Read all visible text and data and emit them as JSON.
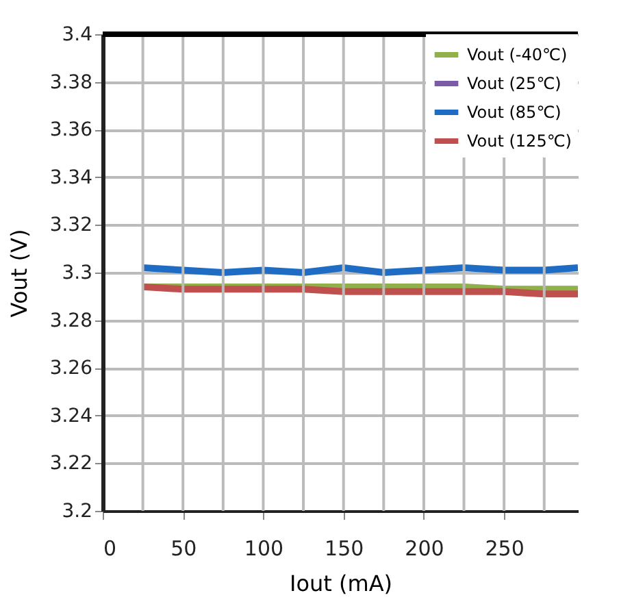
{
  "chart_data": {
    "type": "line",
    "xlabel": "Iout (mA)",
    "ylabel": "Vout (V)",
    "x": [
      25,
      50,
      75,
      100,
      125,
      150,
      175,
      200,
      225,
      250,
      275,
      296
    ],
    "series": [
      {
        "name": "Vout (-40℃)",
        "color": "#8fb04a",
        "values": [
          3.294,
          3.294,
          3.294,
          3.294,
          3.294,
          3.294,
          3.294,
          3.294,
          3.294,
          3.293,
          3.293,
          3.293
        ]
      },
      {
        "name": "Vout (25℃)",
        "color": "#7a5ba6",
        "values": [
          null,
          null,
          null,
          null,
          null,
          null,
          null,
          null,
          null,
          null,
          null,
          null
        ]
      },
      {
        "name": "Vout (85℃)",
        "color": "#1f6cc4",
        "values": [
          3.302,
          3.301,
          3.3,
          3.301,
          3.3,
          3.302,
          3.3,
          3.301,
          3.302,
          3.301,
          3.301,
          3.302
        ]
      },
      {
        "name": "Vout (125℃)",
        "color": "#c0504d",
        "values": [
          3.294,
          3.293,
          3.293,
          3.293,
          3.293,
          3.292,
          3.292,
          3.292,
          3.292,
          3.292,
          3.291,
          3.291
        ]
      }
    ],
    "xlim": [
      0,
      296
    ],
    "xticks": [
      0,
      50,
      100,
      150,
      200,
      250
    ],
    "ylim": [
      3.2,
      3.4
    ],
    "yticks": [
      3.2,
      3.22,
      3.24,
      3.26,
      3.28,
      3.3,
      3.32,
      3.34,
      3.36,
      3.38,
      3.4
    ],
    "grid": true,
    "legend": "top right",
    "marker": "none",
    "line_style": "solid"
  }
}
